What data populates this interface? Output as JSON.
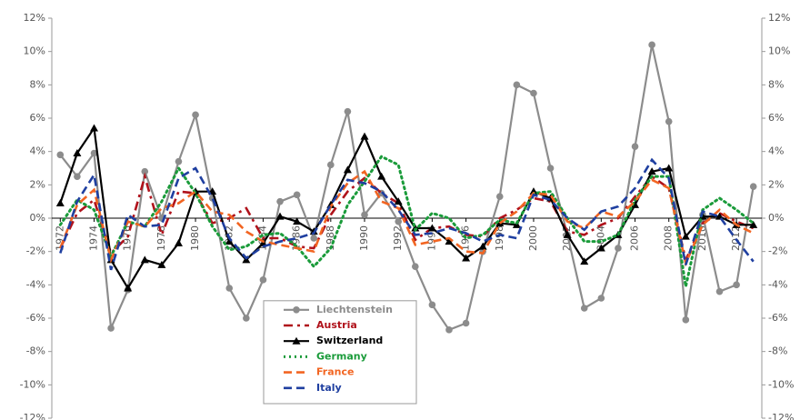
{
  "chart_data": {
    "type": "line",
    "x": [
      1972,
      1973,
      1974,
      1975,
      1976,
      1977,
      1978,
      1979,
      1980,
      1981,
      1982,
      1983,
      1984,
      1985,
      1986,
      1987,
      1988,
      1989,
      1990,
      1991,
      1992,
      1993,
      1994,
      1995,
      1996,
      1997,
      1998,
      1999,
      2000,
      2001,
      2002,
      2003,
      2004,
      2005,
      2006,
      2007,
      2008,
      2009,
      2010,
      2011,
      2012,
      2013
    ],
    "xlim": [
      1971.5,
      2013.5
    ],
    "xticks": [
      1972,
      1974,
      1976,
      1978,
      1980,
      1982,
      1984,
      1986,
      1988,
      1990,
      1992,
      1994,
      1996,
      1998,
      2000,
      2002,
      2004,
      2006,
      2008,
      2010,
      2012
    ],
    "ylim": [
      -12,
      12
    ],
    "yticks": [
      {
        "value": -12,
        "label": "-12%"
      },
      {
        "value": -10,
        "label": "-10%"
      },
      {
        "value": -8,
        "label": "-8%"
      },
      {
        "value": -6,
        "label": "-6%"
      },
      {
        "value": -4,
        "label": "-4%"
      },
      {
        "value": -2,
        "label": "-2%"
      },
      {
        "value": 0,
        "label": "0%"
      },
      {
        "value": 2,
        "label": "2%"
      },
      {
        "value": 4,
        "label": "4%"
      },
      {
        "value": 6,
        "label": "6%"
      },
      {
        "value": 8,
        "label": "8%"
      },
      {
        "value": 10,
        "label": "10%"
      },
      {
        "value": 12,
        "label": "12%"
      }
    ],
    "legend": "lower center",
    "series": [
      {
        "name": "Liechtenstein",
        "color": "#8c8c8c",
        "style": "solid",
        "marker": "circle",
        "values": [
          3.8,
          2.5,
          3.9,
          -6.6,
          -4.3,
          2.8,
          0.0,
          3.4,
          6.2,
          1.2,
          -4.2,
          -6.0,
          -3.7,
          1.0,
          1.4,
          -1.2,
          3.2,
          6.4,
          0.2,
          1.5,
          -0.2,
          -2.9,
          -5.2,
          -6.7,
          -6.3,
          -2.0,
          1.3,
          8.0,
          7.5,
          3.0,
          -1.0,
          -5.4,
          -4.8,
          -1.8,
          4.3,
          10.4,
          5.8,
          -6.1,
          0.2,
          -4.4,
          -4.0,
          1.9
        ]
      },
      {
        "name": "Austria",
        "color": "#b0121b",
        "style": "dashdot",
        "marker": "none",
        "values": [
          -1.8,
          0.3,
          1.1,
          -2.1,
          -1.1,
          2.5,
          -1.0,
          1.6,
          1.5,
          -0.3,
          0.0,
          0.6,
          -1.2,
          -1.2,
          -1.7,
          -1.8,
          0.2,
          1.6,
          2.4,
          1.5,
          0.9,
          -1.3,
          -0.6,
          -0.5,
          -1.0,
          -1.1,
          0.0,
          0.5,
          1.2,
          1.0,
          -0.8,
          -1.0,
          -0.4,
          0.0,
          1.3,
          2.5,
          1.8,
          -2.5,
          -0.3,
          0.3,
          -0.2,
          -0.6
        ]
      },
      {
        "name": "Switzerland",
        "color": "#000000",
        "style": "solid",
        "marker": "triangle",
        "values": [
          0.9,
          3.9,
          5.4,
          -2.5,
          -4.2,
          -2.5,
          -2.8,
          -1.5,
          1.6,
          1.6,
          -1.4,
          -2.5,
          -1.5,
          0.1,
          -0.2,
          -0.8,
          0.8,
          2.9,
          4.9,
          2.5,
          1.0,
          -0.6,
          -0.6,
          -1.4,
          -2.4,
          -1.7,
          -0.3,
          -0.4,
          1.6,
          1.2,
          -1.0,
          -2.6,
          -1.8,
          -1.0,
          0.8,
          2.8,
          3.0,
          -1.1,
          0.1,
          0.1,
          -0.4,
          -0.4
        ]
      },
      {
        "name": "Germany",
        "color": "#1a9b3a",
        "style": "dot",
        "marker": "none",
        "values": [
          -0.4,
          1.1,
          0.5,
          -2.3,
          -0.2,
          -0.5,
          1.0,
          3.0,
          1.5,
          -0.5,
          -1.9,
          -1.7,
          -1.0,
          -0.9,
          -1.7,
          -2.9,
          -1.8,
          0.8,
          2.2,
          3.7,
          3.2,
          -0.7,
          0.3,
          0.0,
          -1.2,
          -1.0,
          -0.1,
          -0.3,
          1.5,
          1.6,
          0.0,
          -1.4,
          -1.4,
          -1.0,
          1.1,
          2.5,
          2.5,
          -4.1,
          0.5,
          1.2,
          0.5,
          -0.3
        ]
      },
      {
        "name": "France",
        "color": "#f26522",
        "style": "dash",
        "marker": "none",
        "values": [
          -1.8,
          0.8,
          1.7,
          -2.5,
          -0.2,
          -0.5,
          0.6,
          0.9,
          1.6,
          0.4,
          0.2,
          -0.8,
          -1.4,
          -1.6,
          -1.8,
          -2.0,
          0.7,
          2.1,
          2.8,
          1.0,
          0.6,
          -1.6,
          -1.4,
          -1.2,
          -2.0,
          -2.1,
          -0.3,
          0.4,
          1.5,
          1.4,
          -0.2,
          -0.6,
          0.4,
          0.1,
          1.0,
          2.3,
          1.8,
          -2.7,
          -0.4,
          0.5,
          -0.4,
          -0.9
        ]
      },
      {
        "name": "Italy",
        "color": "#1f3fa0",
        "style": "dash",
        "marker": "none",
        "values": [
          -2.1,
          1.0,
          2.6,
          -3.1,
          0.2,
          -0.5,
          -0.4,
          2.4,
          3.0,
          1.2,
          -1.2,
          -2.4,
          -1.7,
          -1.4,
          -1.2,
          -0.9,
          0.8,
          2.3,
          2.1,
          1.6,
          0.5,
          -1.0,
          -0.9,
          -0.6,
          -0.9,
          -1.4,
          -1.0,
          -1.2,
          1.4,
          1.1,
          0.0,
          -0.7,
          0.4,
          0.7,
          1.8,
          3.5,
          2.4,
          -2.8,
          0.4,
          0.1,
          -1.3,
          -2.6
        ]
      }
    ]
  }
}
